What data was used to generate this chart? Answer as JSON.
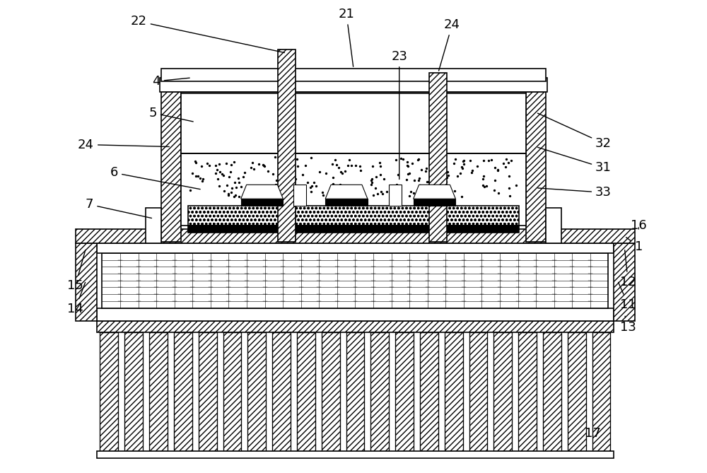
{
  "bg_color": "#ffffff",
  "line_color": "#000000",
  "fig_width": 10.0,
  "fig_height": 6.69,
  "lw": 1.2,
  "thin_lw": 0.5,
  "label_fs": 13
}
